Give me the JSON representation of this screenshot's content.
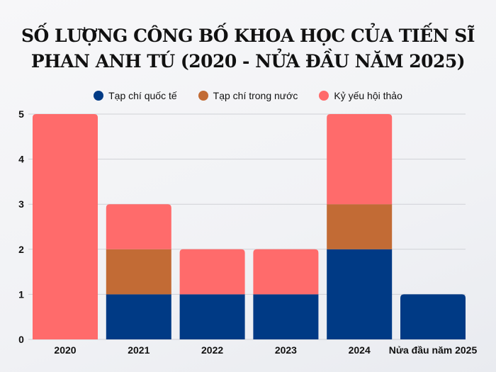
{
  "chart_data": {
    "type": "bar",
    "stacked": true,
    "title": "SỐ LƯỢNG CÔNG BỐ KHOA HỌC CỦA TIẾN SĨ PHAN ANH TÚ (2020 - NỬA ĐẦU NĂM 2025)",
    "title_lines": [
      "SỐ LƯỢNG CÔNG BỐ KHOA HỌC CỦA TIẾN SĨ",
      "PHAN ANH TÚ (2020 - NỬA ĐẦU NĂM 2025)"
    ],
    "categories": [
      "2020",
      "2021",
      "2022",
      "2023",
      "2024",
      "Nửa đầu năm 2025"
    ],
    "series": [
      {
        "name": "Tạp chí quốc tế",
        "color": "#003a85",
        "values": [
          0,
          1,
          1,
          1,
          2,
          1
        ]
      },
      {
        "name": "Tạp chí trong nước",
        "color": "#c26b35",
        "values": [
          0,
          1,
          0,
          0,
          1,
          0
        ]
      },
      {
        "name": "Kỷ yếu hội thảo",
        "color": "#ff6b6b",
        "values": [
          5,
          1,
          1,
          1,
          2,
          0
        ]
      }
    ],
    "yticks": [
      "0",
      "1",
      "2",
      "3",
      "4",
      "5"
    ],
    "ylim": [
      0,
      5
    ],
    "xlabel": "",
    "ylabel": "",
    "grid": true,
    "legend_position": "top"
  }
}
